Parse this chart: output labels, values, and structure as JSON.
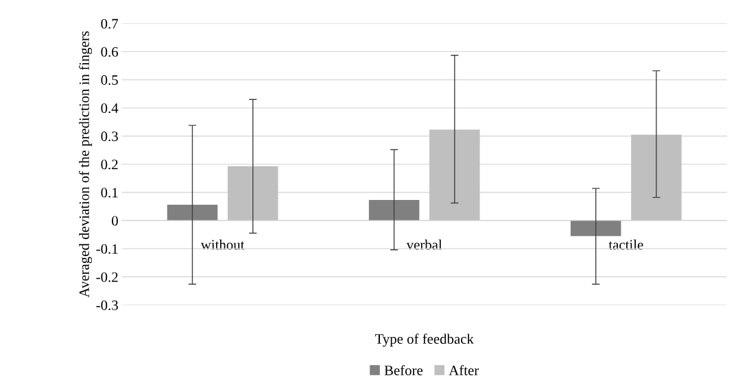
{
  "chart_data": {
    "type": "bar",
    "xlabel": "Type of feedback",
    "ylabel": "Averaged deviation of the prediction in fingers",
    "categories": [
      "without",
      "verbal",
      "tactile"
    ],
    "series": [
      {
        "name": "Before",
        "color": "#808080",
        "values": [
          0.056,
          0.073,
          -0.055
        ],
        "errors": [
          [
            -0.226,
            0.338
          ],
          [
            -0.104,
            0.252
          ],
          [
            -0.226,
            0.114
          ]
        ]
      },
      {
        "name": "After",
        "color": "#bfbfbf",
        "values": [
          0.193,
          0.323,
          0.305
        ],
        "errors": [
          [
            -0.045,
            0.43
          ],
          [
            0.062,
            0.587
          ],
          [
            0.082,
            0.532
          ]
        ]
      }
    ],
    "ylim": [
      -0.3,
      0.7
    ],
    "yticks": [
      -0.3,
      -0.2,
      -0.1,
      0,
      0.1,
      0.2,
      0.3,
      0.4,
      0.5,
      0.6,
      0.7
    ],
    "grid": "y",
    "legend": "bottom"
  }
}
